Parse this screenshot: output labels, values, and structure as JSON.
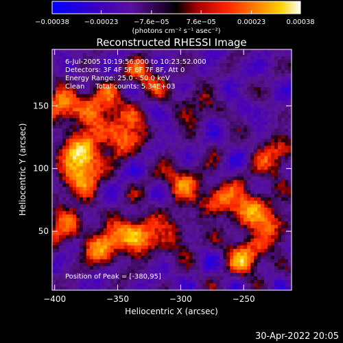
{
  "chart_data": {
    "type": "heatmap",
    "title": "Reconstructed RHESSI Image",
    "xlabel": "Heliocentric X (arcsec)",
    "ylabel": "Heliocentric Y (arcsec)",
    "xlim": [
      -402,
      -212
    ],
    "ylim": [
      3,
      195
    ],
    "x_ticks": [
      -400,
      -350,
      -300,
      -250
    ],
    "x_tick_labels": [
      "−400",
      "−350",
      "−300",
      "−250"
    ],
    "y_ticks": [
      50,
      100,
      150
    ],
    "y_tick_labels": [
      "50",
      "100",
      "150"
    ],
    "colorbar": {
      "range": [
        -0.00038,
        0.00038
      ],
      "ticks": [
        -0.00038,
        -0.00023,
        -7.6e-05,
        7.6e-05,
        0.00023,
        0.00038
      ],
      "tick_labels": [
        "−0.00038",
        "−0.00023",
        "−7.6e−05",
        "7.6e−05",
        "0.00023",
        "0.00038"
      ],
      "units": "(photons cm⁻² s⁻¹ asec⁻²)",
      "colormap": [
        "#0000ff",
        "#4a00a0",
        "#5a1090",
        "#000000",
        "#a00000",
        "#ff2000",
        "#ff8000",
        "#ffd000",
        "#ffffff"
      ]
    },
    "sources": [
      {
        "x": -378,
        "y": 112,
        "intensity": 1.0
      },
      {
        "x": -345,
        "y": 128,
        "intensity": 0.75
      },
      {
        "x": -365,
        "y": 150,
        "intensity": 0.7
      },
      {
        "x": -395,
        "y": 150,
        "intensity": 0.65
      },
      {
        "x": -330,
        "y": 172,
        "intensity": 0.5
      },
      {
        "x": -335,
        "y": 48,
        "intensity": 0.85
      },
      {
        "x": -362,
        "y": 38,
        "intensity": 0.7
      },
      {
        "x": -380,
        "y": 90,
        "intensity": 0.6
      },
      {
        "x": -395,
        "y": 55,
        "intensity": 0.55
      },
      {
        "x": -300,
        "y": 88,
        "intensity": 0.55
      },
      {
        "x": -270,
        "y": 75,
        "intensity": 0.55
      },
      {
        "x": -245,
        "y": 70,
        "intensity": 0.6
      },
      {
        "x": -228,
        "y": 55,
        "intensity": 0.5
      },
      {
        "x": -248,
        "y": 30,
        "intensity": 0.7
      },
      {
        "x": -225,
        "y": 110,
        "intensity": 0.55
      },
      {
        "x": -290,
        "y": 150,
        "intensity": 0.35
      },
      {
        "x": -305,
        "y": 45,
        "intensity": 0.4
      }
    ],
    "peak_position": [
      -380,
      95
    ]
  },
  "annotations": {
    "time_range": "6-Jul-2005 10:19:56.000 to 10:23:52.000",
    "detectors": "Detectors: 3F 4F 5F 6F 7F 8F, Att 0",
    "energy": "Energy Range: 25.0 - 50.0 keV",
    "method": "Clean     Total counts: 5.34E+03",
    "peak": "Position of Peak = [-380,95]"
  },
  "footer": {
    "date": "30-Apr-2022 20:05"
  }
}
